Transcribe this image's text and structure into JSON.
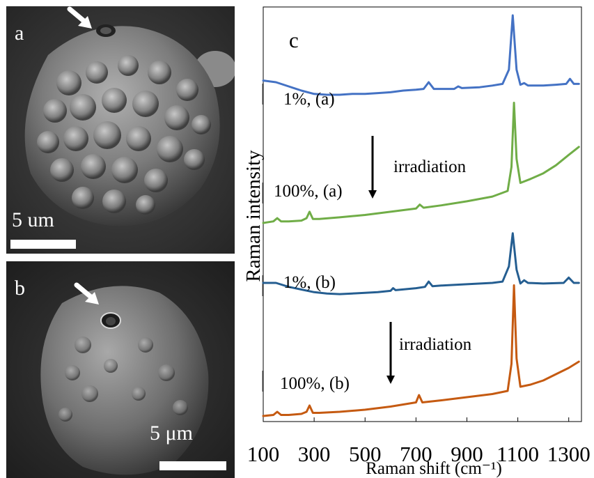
{
  "figure": {
    "panel_a": {
      "letter": "a",
      "scale_label": "5 um",
      "arrow_icon": "white-arrow-icon",
      "background": "#3a3a3a"
    },
    "panel_b": {
      "letter": "b",
      "scale_label": "5 μm",
      "arrow_icon": "white-arrow-icon",
      "background": "#2e2e2e"
    }
  },
  "chart_data": {
    "type": "line",
    "panel_letter": "c",
    "xlabel": "Raman shift (cm⁻¹)",
    "ylabel": "Raman intensity",
    "xlim": [
      100,
      1350
    ],
    "x_ticks": [
      100,
      300,
      500,
      700,
      900,
      1100,
      1300
    ],
    "x_tick_labels": [
      "100",
      "300",
      "500",
      "700",
      "900",
      "1100",
      "1300"
    ],
    "y_ticks": "none",
    "grid": false,
    "series": [
      {
        "name": "1%, (a)",
        "color": "#4472c4",
        "x": [
          100,
          150,
          200,
          250,
          300,
          350,
          400,
          450,
          500,
          550,
          600,
          650,
          700,
          730,
          750,
          770,
          800,
          850,
          866,
          880,
          950,
          1000,
          1040,
          1065,
          1080,
          1095,
          1110,
          1125,
          1140,
          1200,
          1250,
          1290,
          1305,
          1320,
          1340
        ],
        "y": [
          0.62,
          0.6,
          0.55,
          0.5,
          0.46,
          0.45,
          0.45,
          0.46,
          0.46,
          0.47,
          0.48,
          0.5,
          0.51,
          0.52,
          0.6,
          0.52,
          0.52,
          0.52,
          0.55,
          0.53,
          0.54,
          0.56,
          0.58,
          0.75,
          1.4,
          0.75,
          0.57,
          0.59,
          0.56,
          0.56,
          0.57,
          0.58,
          0.64,
          0.58,
          0.58
        ]
      },
      {
        "name": "100%, (a)",
        "color": "#70ad47",
        "x": [
          100,
          140,
          155,
          170,
          200,
          250,
          270,
          282,
          295,
          320,
          400,
          500,
          600,
          700,
          715,
          730,
          800,
          900,
          1000,
          1060,
          1075,
          1085,
          1095,
          1110,
          1150,
          1200,
          1250,
          1300,
          1340
        ],
        "y": [
          0.0,
          0.02,
          0.06,
          0.02,
          0.02,
          0.03,
          0.06,
          0.14,
          0.05,
          0.05,
          0.07,
          0.1,
          0.14,
          0.18,
          0.23,
          0.19,
          0.22,
          0.27,
          0.33,
          0.4,
          0.7,
          1.5,
          0.8,
          0.5,
          0.55,
          0.62,
          0.72,
          0.85,
          0.95
        ]
      },
      {
        "name": "1%, (b)",
        "color": "#255e91",
        "x": [
          100,
          150,
          200,
          250,
          300,
          350,
          400,
          450,
          500,
          550,
          600,
          610,
          620,
          700,
          735,
          750,
          765,
          800,
          900,
          1000,
          1040,
          1065,
          1080,
          1095,
          1110,
          1125,
          1140,
          1200,
          1280,
          1300,
          1320,
          1340
        ],
        "y": [
          0.2,
          0.2,
          0.14,
          0.1,
          0.06,
          0.04,
          0.03,
          0.04,
          0.05,
          0.06,
          0.08,
          0.12,
          0.09,
          0.12,
          0.14,
          0.22,
          0.15,
          0.16,
          0.18,
          0.2,
          0.22,
          0.45,
          0.95,
          0.4,
          0.19,
          0.24,
          0.2,
          0.19,
          0.2,
          0.28,
          0.2,
          0.2
        ]
      },
      {
        "name": "100%, (b)",
        "color": "#c55a11",
        "x": [
          100,
          140,
          155,
          170,
          200,
          250,
          270,
          282,
          295,
          320,
          400,
          500,
          600,
          700,
          712,
          725,
          800,
          900,
          1000,
          1060,
          1075,
          1085,
          1095,
          1110,
          1150,
          1200,
          1250,
          1300,
          1340
        ],
        "y": [
          0.0,
          0.01,
          0.04,
          0.01,
          0.01,
          0.02,
          0.04,
          0.1,
          0.03,
          0.03,
          0.04,
          0.06,
          0.09,
          0.13,
          0.2,
          0.13,
          0.15,
          0.18,
          0.21,
          0.24,
          0.5,
          1.25,
          0.55,
          0.28,
          0.3,
          0.34,
          0.4,
          0.46,
          0.52
        ]
      }
    ],
    "annotations": [
      {
        "text": "1%, (a)"
      },
      {
        "text": "100%, (a)"
      },
      {
        "text": "1%, (b)"
      },
      {
        "text": "100%, (b)"
      },
      {
        "text": "irradiation"
      },
      {
        "text": "irradiation"
      }
    ]
  }
}
